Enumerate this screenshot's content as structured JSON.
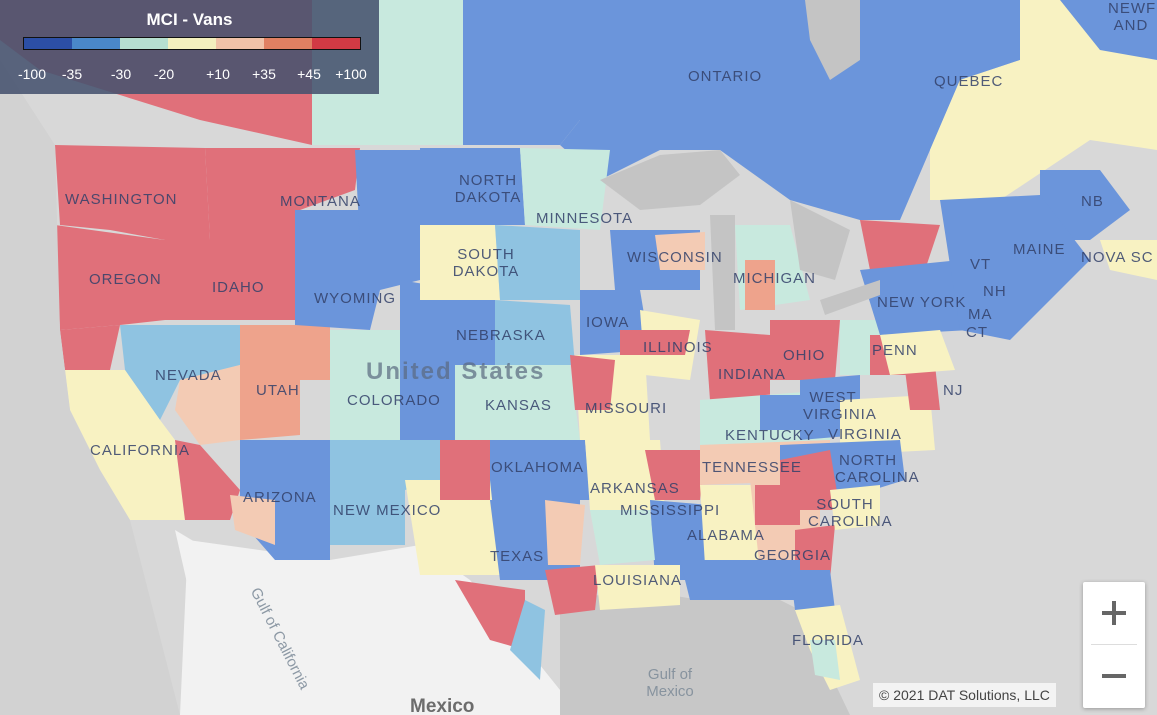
{
  "legend": {
    "title": "MCI - Vans",
    "colors": [
      "#2c4fa6",
      "#4a88c9",
      "#b6dfd0",
      "#f3efbe",
      "#f0c2a8",
      "#e08062",
      "#d23a44"
    ],
    "ticks": [
      "-100",
      "-35",
      "-30",
      "-20",
      "+10",
      "+35",
      "+45",
      "+100"
    ]
  },
  "palette": {
    "red": "#e0707a",
    "blue": "#6b95db",
    "light_blue": "#8fc3e1",
    "mint": "#c8e9de",
    "yellow": "#f8f2c2",
    "peach": "#f3cbb4",
    "salmon": "#eea38c",
    "land": "#d8d8d8",
    "water": "#c4c4c4"
  },
  "labels": {
    "ontario": "ONTARIO",
    "quebec": "QUEBEC",
    "nb": "NB",
    "nova_scotia": "NOVA SC",
    "newfoundland": "NEWF AND",
    "washington": "WASHINGTON",
    "montana": "MONTANA",
    "north_dakota": "NORTH DAKOTA",
    "minnesota": "MINNESOTA",
    "oregon": "OREGON",
    "idaho": "IDAHO",
    "south_dakota": "SOUTH DAKOTA",
    "wisconsin": "WISCONSIN",
    "michigan": "MICHIGAN",
    "wyoming": "WYOMING",
    "iowa": "IOWA",
    "nebraska": "NEBRASKA",
    "illinois": "ILLINOIS",
    "indiana": "INDIANA",
    "ohio": "OHIO",
    "penn": "PENN",
    "new_york": "NEW YORK",
    "maine": "MAINE",
    "vt": "VT",
    "nh": "NH",
    "ma": "MA",
    "ct": "CT",
    "nj": "NJ",
    "nevada": "NEVADA",
    "utah": "UTAH",
    "colorado": "COLORADO",
    "kansas": "KANSAS",
    "missouri": "MISSOURI",
    "kentucky": "KENTUCKY",
    "west_virginia": "WEST VIRGINIA",
    "virginia": "VIRGINIA",
    "california": "CALIFORNIA",
    "arizona": "ARIZONA",
    "new_mexico": "NEW MEXICO",
    "oklahoma": "OKLAHOMA",
    "arkansas": "ARKANSAS",
    "tennessee": "TENNESSEE",
    "north_carolina": "NORTH CAROLINA",
    "south_carolina": "SOUTH CAROLINA",
    "mississippi": "MISSISSIPPI",
    "alabama": "ALABAMA",
    "georgia": "GEORGIA",
    "texas": "TEXAS",
    "louisiana": "LOUISIANA",
    "florida": "FLORIDA",
    "united_states": "United States",
    "gulf_of_mexico": "Gulf of Mexico",
    "gulf_of_california": "Gulf of California",
    "mexico": "Mexico"
  },
  "zoom": {
    "in": "+",
    "out": "−"
  },
  "copyright": "© 2021 DAT Solutions, LLC"
}
